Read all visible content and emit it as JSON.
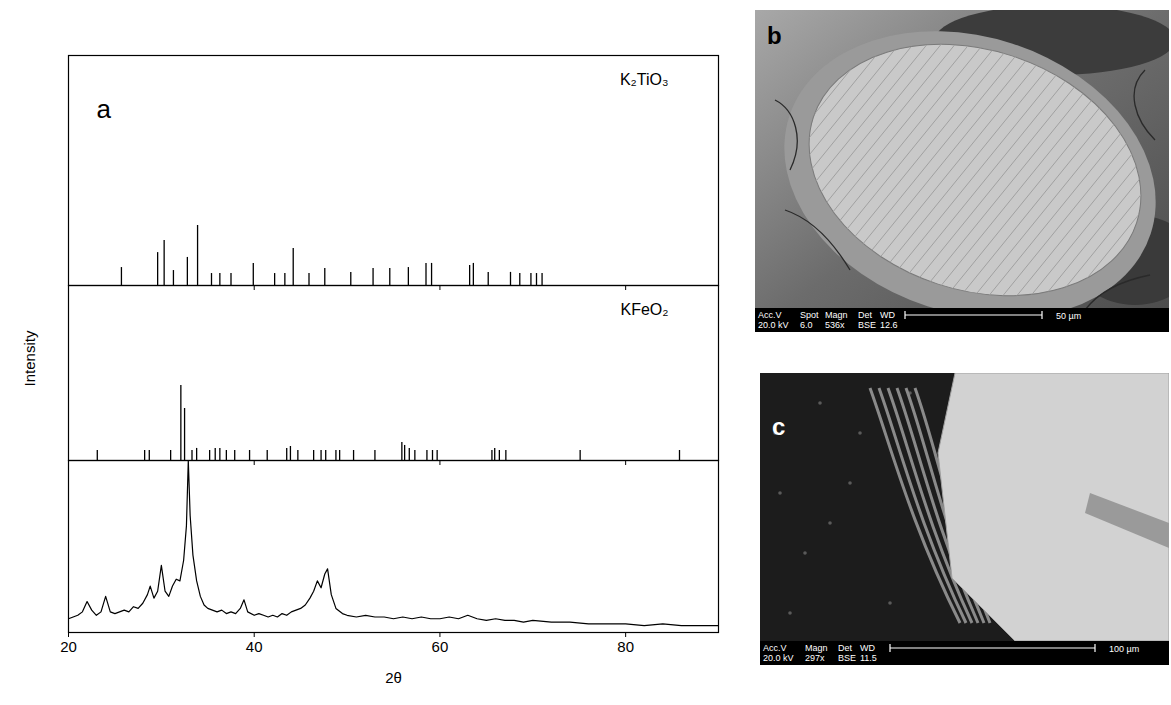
{
  "chart_data": [
    {
      "type": "stem",
      "title": "K₂TiO₃",
      "color": "#000000",
      "annotations": [
        "a"
      ],
      "xlim": [
        20,
        90
      ],
      "xticks": [
        20,
        40,
        60,
        80
      ],
      "ylim": [
        0,
        100
      ],
      "tick_labels": false,
      "x": [
        25.7,
        29.6,
        30.3,
        31.3,
        32.8,
        33.9,
        35.4,
        36.3,
        37.5,
        39.9,
        42.2,
        43.3,
        44.2,
        45.9,
        47.6,
        50.4,
        52.8,
        54.6,
        56.6,
        58.5,
        59.1,
        63.2,
        63.6,
        65.2,
        67.6,
        68.6,
        69.8,
        70.4,
        71.0
      ],
      "values": [
        7.8,
        14.3,
        19.6,
        6.5,
        12.2,
        26.1,
        5.2,
        5.2,
        5.2,
        9.6,
        5.2,
        5.2,
        16.1,
        5.2,
        7.4,
        5.7,
        7.4,
        7.4,
        7.8,
        9.6,
        9.6,
        8.7,
        9.6,
        5.7,
        5.7,
        5.2,
        5.2,
        5.2,
        5.2
      ]
    },
    {
      "type": "stem",
      "title": "KFeO₂",
      "color": "#000000",
      "ylabel": "Intensity",
      "xlim": [
        20,
        90
      ],
      "xticks": [
        20,
        40,
        60,
        80
      ],
      "ylim": [
        0,
        100
      ],
      "tick_labels": false,
      "x": [
        23.1,
        28.2,
        28.7,
        31.0,
        32.1,
        32.5,
        33.3,
        33.8,
        35.2,
        35.8,
        36.3,
        37.0,
        37.9,
        39.5,
        41.4,
        43.5,
        43.9,
        44.7,
        46.4,
        47.2,
        47.7,
        48.8,
        49.2,
        50.7,
        53.0,
        55.9,
        56.2,
        56.7,
        57.3,
        58.6,
        59.2,
        59.7,
        65.6,
        65.9,
        66.4,
        67.1,
        75.1,
        85.8
      ],
      "values": [
        5.7,
        5.7,
        5.7,
        5.7,
        42.9,
        29.7,
        5.7,
        6.9,
        5.7,
        6.9,
        6.9,
        5.7,
        5.7,
        5.7,
        5.7,
        6.9,
        8,
        5.7,
        5.7,
        5.7,
        5.7,
        5.7,
        5.7,
        5.7,
        5.7,
        10.3,
        8.6,
        6.9,
        5.7,
        5.7,
        5.7,
        5.7,
        5.7,
        6.9,
        5.7,
        5.7,
        5.7,
        5.7
      ]
    },
    {
      "type": "line",
      "color": "#000000",
      "xlabel": "2θ",
      "xlim": [
        20,
        90
      ],
      "xticks": [
        20,
        40,
        60,
        80
      ],
      "ylim": [
        0,
        100
      ],
      "tick_labels": "x",
      "x": [
        20,
        20.5,
        21,
        21.5,
        22,
        22.5,
        23,
        23.5,
        24,
        24.5,
        25,
        25.5,
        26,
        26.5,
        27,
        27.5,
        28,
        28.5,
        28.8,
        29.2,
        29.6,
        30,
        30.4,
        30.8,
        31.2,
        31.6,
        32,
        32.4,
        32.7,
        32.9,
        33.1,
        33.4,
        33.8,
        34.2,
        34.6,
        35,
        35.5,
        36,
        36.5,
        37,
        37.5,
        38,
        38.5,
        38.9,
        39.3,
        40,
        40.5,
        41,
        41.5,
        42,
        42.5,
        43,
        43.5,
        44,
        44.5,
        45,
        45.5,
        46,
        46.4,
        46.8,
        47.2,
        47.6,
        47.9,
        48.3,
        48.8,
        49.5,
        50,
        51,
        52,
        53,
        54,
        55,
        56,
        57,
        58,
        59,
        60,
        61,
        62,
        63,
        64,
        65,
        66,
        67,
        68,
        69,
        70,
        72,
        74,
        76,
        78,
        80,
        82,
        84,
        86,
        88,
        90
      ],
      "values": [
        8,
        9,
        10,
        12,
        18,
        13,
        10,
        12,
        21,
        12,
        11,
        12,
        13,
        12,
        15,
        14,
        17,
        22,
        27,
        20,
        24,
        39,
        24,
        21,
        27,
        31,
        30,
        42,
        62,
        100,
        68,
        45,
        30,
        21,
        16,
        14,
        13,
        12,
        13,
        11,
        12,
        11,
        14,
        19,
        12,
        10,
        11,
        10,
        9,
        10,
        9,
        11,
        10,
        12,
        13,
        14,
        16,
        20,
        24,
        30,
        26,
        34,
        37,
        22,
        14,
        11,
        10,
        9,
        10,
        9,
        9,
        8,
        9,
        8,
        9,
        8,
        8,
        9,
        8,
        10,
        8,
        7,
        8,
        7,
        7,
        6,
        7,
        6,
        6,
        5,
        5,
        5,
        4,
        5,
        4,
        4,
        4
      ]
    }
  ],
  "images": [
    {
      "label": "b",
      "info_header": [
        "Acc.V",
        "Spot",
        "Magn",
        "Det",
        "WD"
      ],
      "info_values": [
        "20.0 kV",
        "6.0",
        "536x",
        "BSE",
        "12.6"
      ],
      "scale_bar": "50 µm"
    },
    {
      "label": "c",
      "info_header": [
        "Acc.V",
        "Magn",
        "Det",
        "WD"
      ],
      "info_values": [
        "20.0 kV",
        "297x",
        "BSE",
        "11.5"
      ],
      "scale_bar": "100 µm"
    }
  ]
}
